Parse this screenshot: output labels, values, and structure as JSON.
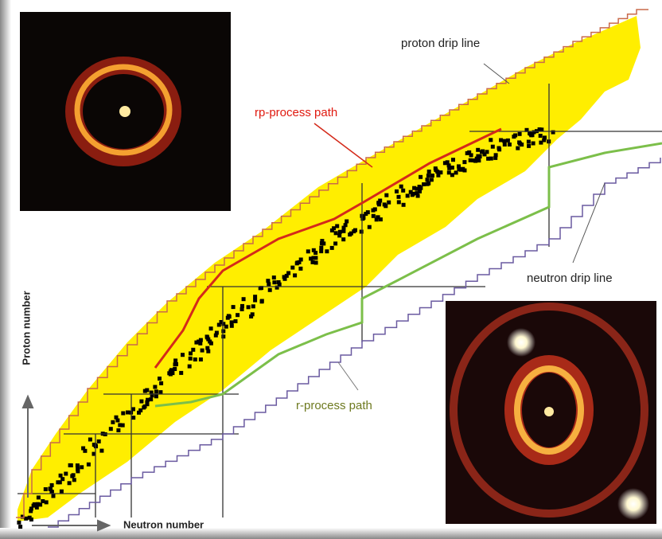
{
  "labels": {
    "proton_drip_line": "proton drip line",
    "rp_process_path": "rp-process path",
    "neutron_drip_line": "neutron drip line",
    "r_process_path": "r-process path"
  },
  "axes": {
    "y_label": "Proton number",
    "x_label": "Neutron number"
  }
}
